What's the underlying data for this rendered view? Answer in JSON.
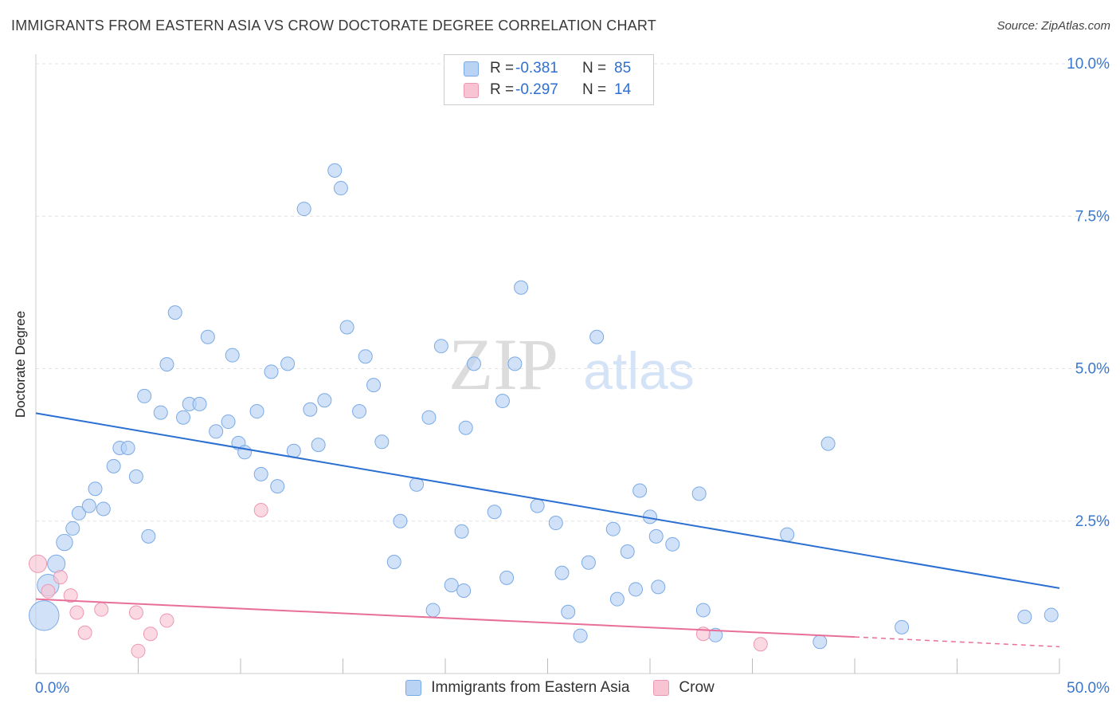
{
  "title": "IMMIGRANTS FROM EASTERN ASIA VS CROW DOCTORATE DEGREE CORRELATION CHART",
  "source": "Source: ZipAtlas.com",
  "watermark": {
    "zip": "ZIP",
    "atlas": "atlas"
  },
  "legend": [
    {
      "r_label": "R =",
      "r_value": "-0.381",
      "n_label": "N =",
      "n_value": "85"
    },
    {
      "r_label": "R =",
      "r_value": "-0.297",
      "n_label": "N =",
      "n_value": "14"
    }
  ],
  "chart_data": {
    "type": "scatter",
    "title": "IMMIGRANTS FROM EASTERN ASIA VS CROW DOCTORATE DEGREE CORRELATION CHART",
    "xlabel": "",
    "ylabel": "Doctorate Degree",
    "xlim": [
      0,
      50
    ],
    "ylim": [
      0,
      10.5
    ],
    "x_tick_labels": [
      "0.0%",
      "50.0%"
    ],
    "y_ticks": [
      2.5,
      5.0,
      7.5,
      10.0
    ],
    "y_tick_labels": [
      "2.5%",
      "5.0%",
      "7.5%",
      "10.0%"
    ],
    "grid": true,
    "legend_position": "top-center",
    "colors": {
      "blue_fill": "#b9d3f5",
      "blue_stroke": "#7aaae6",
      "blue_line": "#2b6fd2",
      "pink_fill": "#f8c4d4",
      "pink_stroke": "#ee97b2",
      "pink_line": "#e86f98",
      "tick_text": "#3a78cf"
    },
    "series": [
      {
        "name": "Immigrants from Eastern Asia",
        "color": "#b9d3f5",
        "trend": {
          "x": [
            0,
            50
          ],
          "y": [
            4.27,
            1.4
          ]
        },
        "points": [
          {
            "x": 0.4,
            "y": 0.95,
            "s": 2.2
          },
          {
            "x": 0.6,
            "y": 1.45,
            "s": 1.6
          },
          {
            "x": 1.0,
            "y": 1.8,
            "s": 1.3
          },
          {
            "x": 1.4,
            "y": 2.15,
            "s": 1.2
          },
          {
            "x": 1.8,
            "y": 2.38
          },
          {
            "x": 2.1,
            "y": 2.63
          },
          {
            "x": 2.6,
            "y": 2.75
          },
          {
            "x": 2.9,
            "y": 3.03
          },
          {
            "x": 3.3,
            "y": 2.7
          },
          {
            "x": 3.8,
            "y": 3.4
          },
          {
            "x": 4.1,
            "y": 3.7
          },
          {
            "x": 4.5,
            "y": 3.7
          },
          {
            "x": 4.9,
            "y": 3.23
          },
          {
            "x": 5.3,
            "y": 4.55
          },
          {
            "x": 5.5,
            "y": 2.25
          },
          {
            "x": 6.1,
            "y": 4.28
          },
          {
            "x": 6.4,
            "y": 5.07
          },
          {
            "x": 6.8,
            "y": 5.92
          },
          {
            "x": 7.2,
            "y": 4.2
          },
          {
            "x": 7.5,
            "y": 4.42
          },
          {
            "x": 8.0,
            "y": 4.42
          },
          {
            "x": 8.4,
            "y": 5.52
          },
          {
            "x": 8.8,
            "y": 3.97
          },
          {
            "x": 9.4,
            "y": 4.13
          },
          {
            "x": 9.6,
            "y": 5.22
          },
          {
            "x": 9.9,
            "y": 3.78
          },
          {
            "x": 10.2,
            "y": 3.63
          },
          {
            "x": 10.8,
            "y": 4.3
          },
          {
            "x": 11.0,
            "y": 3.27
          },
          {
            "x": 11.5,
            "y": 4.95
          },
          {
            "x": 11.8,
            "y": 3.07
          },
          {
            "x": 12.3,
            "y": 5.08
          },
          {
            "x": 12.6,
            "y": 3.65
          },
          {
            "x": 13.1,
            "y": 7.62
          },
          {
            "x": 13.4,
            "y": 4.33
          },
          {
            "x": 13.8,
            "y": 3.75
          },
          {
            "x": 14.1,
            "y": 4.48
          },
          {
            "x": 14.6,
            "y": 8.25
          },
          {
            "x": 14.9,
            "y": 7.96
          },
          {
            "x": 15.2,
            "y": 5.68
          },
          {
            "x": 15.8,
            "y": 4.3
          },
          {
            "x": 16.1,
            "y": 5.2
          },
          {
            "x": 16.5,
            "y": 4.73
          },
          {
            "x": 16.9,
            "y": 3.8
          },
          {
            "x": 17.5,
            "y": 1.83
          },
          {
            "x": 17.8,
            "y": 2.5
          },
          {
            "x": 18.6,
            "y": 3.1
          },
          {
            "x": 19.2,
            "y": 4.2
          },
          {
            "x": 19.4,
            "y": 1.04
          },
          {
            "x": 19.8,
            "y": 5.37
          },
          {
            "x": 20.3,
            "y": 1.45
          },
          {
            "x": 20.8,
            "y": 2.33
          },
          {
            "x": 20.9,
            "y": 1.36
          },
          {
            "x": 21.0,
            "y": 4.03
          },
          {
            "x": 21.4,
            "y": 5.08
          },
          {
            "x": 22.4,
            "y": 2.65
          },
          {
            "x": 22.8,
            "y": 4.47
          },
          {
            "x": 23.0,
            "y": 1.57
          },
          {
            "x": 23.4,
            "y": 5.08
          },
          {
            "x": 23.7,
            "y": 6.33
          },
          {
            "x": 24.5,
            "y": 2.75
          },
          {
            "x": 25.4,
            "y": 2.47
          },
          {
            "x": 25.7,
            "y": 1.65
          },
          {
            "x": 26.0,
            "y": 1.01
          },
          {
            "x": 26.6,
            "y": 0.62
          },
          {
            "x": 27.0,
            "y": 1.82
          },
          {
            "x": 27.4,
            "y": 5.52
          },
          {
            "x": 28.2,
            "y": 2.37
          },
          {
            "x": 28.4,
            "y": 1.22
          },
          {
            "x": 28.9,
            "y": 2.0
          },
          {
            "x": 29.3,
            "y": 1.38
          },
          {
            "x": 29.5,
            "y": 3.0
          },
          {
            "x": 30.0,
            "y": 2.57
          },
          {
            "x": 30.3,
            "y": 2.25
          },
          {
            "x": 30.4,
            "y": 1.42
          },
          {
            "x": 31.1,
            "y": 2.12
          },
          {
            "x": 32.4,
            "y": 2.95
          },
          {
            "x": 32.6,
            "y": 1.04
          },
          {
            "x": 33.2,
            "y": 0.63
          },
          {
            "x": 36.7,
            "y": 2.28
          },
          {
            "x": 38.3,
            "y": 0.52
          },
          {
            "x": 38.7,
            "y": 3.77
          },
          {
            "x": 42.3,
            "y": 0.76
          },
          {
            "x": 48.3,
            "y": 0.93
          },
          {
            "x": 49.6,
            "y": 0.96
          }
        ]
      },
      {
        "name": "Crow",
        "color": "#f8c4d4",
        "trend": {
          "x": [
            0,
            40,
            50
          ],
          "y": [
            1.22,
            0.6,
            0.44
          ]
        },
        "points": [
          {
            "x": 0.1,
            "y": 1.8,
            "s": 1.3
          },
          {
            "x": 0.6,
            "y": 1.35
          },
          {
            "x": 1.2,
            "y": 1.58
          },
          {
            "x": 1.7,
            "y": 1.28
          },
          {
            "x": 2.0,
            "y": 1.0
          },
          {
            "x": 2.4,
            "y": 0.67
          },
          {
            "x": 3.2,
            "y": 1.05
          },
          {
            "x": 4.9,
            "y": 1.0
          },
          {
            "x": 5.0,
            "y": 0.37
          },
          {
            "x": 5.6,
            "y": 0.65
          },
          {
            "x": 6.4,
            "y": 0.87
          },
          {
            "x": 11.0,
            "y": 2.68
          },
          {
            "x": 32.6,
            "y": 0.65
          },
          {
            "x": 35.4,
            "y": 0.48
          }
        ]
      }
    ]
  }
}
